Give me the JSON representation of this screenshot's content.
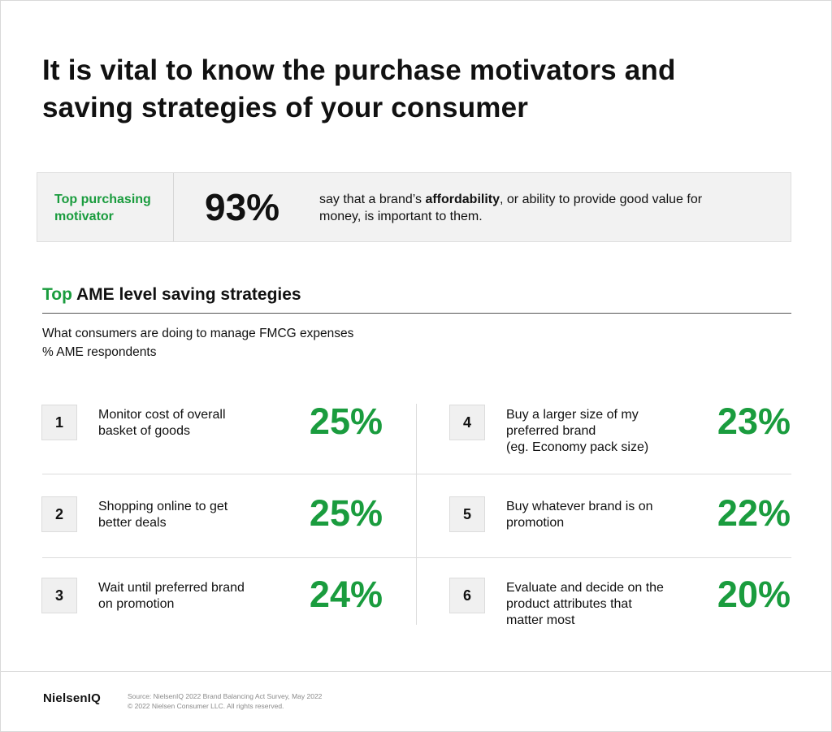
{
  "title_line1": "It is vital to know the purchase motivators and",
  "title_line2": "saving strategies of your consumer",
  "motivator": {
    "label_line1": "Top purchasing",
    "label_line2": "motivator",
    "value": "93%",
    "desc_pre": "say that a brand’s ",
    "desc_bold": "affordability",
    "desc_post": ", or ability to provide good value for money, is important to them."
  },
  "section": {
    "accent": "Top",
    "title_rest": " AME level saving strategies",
    "subtitle_line1": "What consumers are doing to manage FMCG expenses",
    "subtitle_line2": "% AME respondents"
  },
  "strategies": [
    {
      "num": "1",
      "line1": "Monitor cost of overall",
      "line2": "basket of goods",
      "line3": "",
      "pct": "25%"
    },
    {
      "num": "2",
      "line1": "Shopping online to get",
      "line2": "better deals",
      "line3": "",
      "pct": "25%"
    },
    {
      "num": "3",
      "line1": "Wait until preferred brand",
      "line2": "on promotion",
      "line3": "",
      "pct": "24%"
    },
    {
      "num": "4",
      "line1": "Buy a larger size of my",
      "line2": "preferred brand",
      "line3": "(eg. Economy pack size)",
      "pct": "23%"
    },
    {
      "num": "5",
      "line1": "Buy whatever brand is on",
      "line2": "promotion",
      "line3": "",
      "pct": "22%"
    },
    {
      "num": "6",
      "line1": "Evaluate and decide on the",
      "line2": "product attributes that",
      "line3": "matter most",
      "pct": "20%"
    }
  ],
  "footer": {
    "brand": "NielsenIQ",
    "source_line1": "Source: NielsenIQ 2022 Brand Balancing Act Survey, May 2022",
    "source_line2": "© 2022 Nielsen Consumer LLC. All rights reserved."
  },
  "colors": {
    "accent": "#1a9c3e",
    "panel": "#f2f2f2"
  }
}
